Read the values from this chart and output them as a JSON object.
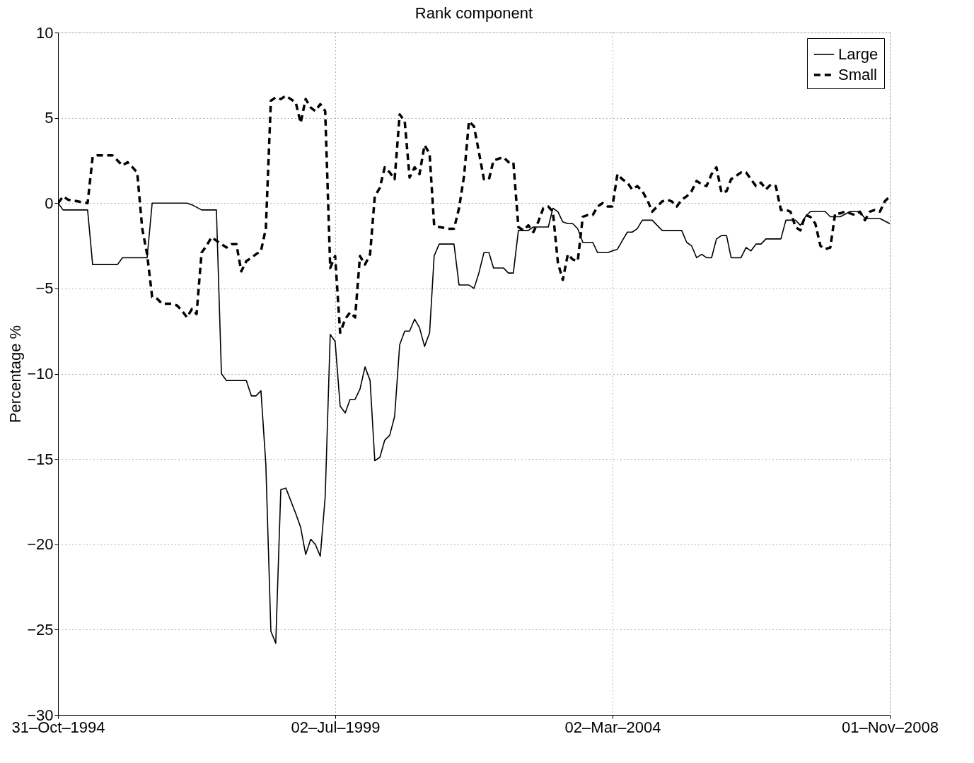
{
  "chart_data": {
    "type": "line",
    "title": "Rank component",
    "ylabel": "Percentage %",
    "xlim": [
      "1994-10-31",
      "2008-11-01"
    ],
    "xticks": [
      {
        "value": "1994-10-31",
        "label": "31–Oct–1994"
      },
      {
        "value": "1999-07-02",
        "label": "02–Jul–1999"
      },
      {
        "value": "2004-03-02",
        "label": "02–Mar–2004"
      },
      {
        "value": "2008-11-01",
        "label": "01–Nov–2008"
      }
    ],
    "ylim": [
      -30,
      10
    ],
    "yticks": [
      -30,
      -25,
      -20,
      -15,
      -10,
      -5,
      0,
      5,
      10
    ],
    "grid": true,
    "legend": "top right",
    "marker": "none",
    "series": [
      {
        "name": "Large",
        "color": "#000000",
        "line_style": "solid",
        "x": [
          "1994-11",
          "1994-12",
          "1995-05",
          "1995-06",
          "1995-11",
          "1995-12",
          "1996-05",
          "1996-06",
          "1997-01",
          "1997-02",
          "1997-04",
          "1997-07",
          "1997-08",
          "1997-09",
          "1998-01",
          "1998-02",
          "1998-03",
          "1998-04",
          "1998-05",
          "1998-06",
          "1998-07",
          "1998-08",
          "1998-09",
          "1998-11",
          "1998-12",
          "1999-01",
          "1999-02",
          "1999-03",
          "1999-04",
          "1999-05",
          "1999-06",
          "1999-07",
          "1999-08",
          "1999-09",
          "1999-10",
          "1999-11",
          "1999-12",
          "2000-01",
          "2000-02",
          "2000-03",
          "2000-04",
          "2000-05",
          "2000-06",
          "2000-07",
          "2000-08",
          "2000-09",
          "2000-10",
          "2000-11",
          "2000-12",
          "2001-01",
          "2001-02",
          "2001-03",
          "2001-04",
          "2001-07",
          "2001-08",
          "2001-10",
          "2001-11",
          "2001-12",
          "2002-01",
          "2002-02",
          "2002-03",
          "2002-05",
          "2002-06",
          "2002-07",
          "2002-08",
          "2002-10",
          "2002-11",
          "2003-02",
          "2003-03",
          "2003-04",
          "2003-05",
          "2003-06",
          "2003-07",
          "2003-08",
          "2003-09",
          "2003-11",
          "2003-12",
          "2004-02",
          "2004-03",
          "2004-04",
          "2004-05",
          "2004-06",
          "2004-07",
          "2004-08",
          "2004-09",
          "2004-11",
          "2004-12",
          "2005-01",
          "2005-05",
          "2005-06",
          "2005-07",
          "2005-08",
          "2005-09",
          "2005-10",
          "2005-11",
          "2005-12",
          "2006-01",
          "2006-02",
          "2006-03",
          "2006-05",
          "2006-06",
          "2006-07",
          "2006-08",
          "2006-09",
          "2006-10",
          "2007-01",
          "2007-02",
          "2007-04",
          "2007-05",
          "2007-06",
          "2007-07",
          "2007-10",
          "2007-11",
          "2008-01",
          "2008-03",
          "2008-05",
          "2008-06",
          "2008-09",
          "2008-11"
        ],
        "values": [
          0,
          -0.4,
          -0.4,
          -3.6,
          -3.6,
          -3.2,
          -3.2,
          0,
          0,
          -0.1,
          -0.4,
          -0.4,
          -10,
          -10.4,
          -10.4,
          -11.3,
          -11.3,
          -11,
          -15.3,
          -25.1,
          -25.8,
          -16.8,
          -16.7,
          -18.2,
          -19,
          -20.6,
          -19.7,
          -20,
          -20.7,
          -17.2,
          -7.7,
          -8.1,
          -11.9,
          -12.3,
          -11.5,
          -11.5,
          -10.9,
          -9.6,
          -10.4,
          -15.1,
          -14.9,
          -13.9,
          -13.6,
          -12.5,
          -8.3,
          -7.5,
          -7.5,
          -6.8,
          -7.3,
          -8.4,
          -7.6,
          -3.1,
          -2.4,
          -2.4,
          -4.8,
          -4.8,
          -5,
          -4.1,
          -2.9,
          -2.9,
          -3.8,
          -3.8,
          -4.1,
          -4.1,
          -1.6,
          -1.6,
          -1.4,
          -1.4,
          -0.3,
          -0.5,
          -1.1,
          -1.2,
          -1.2,
          -1.5,
          -2.3,
          -2.3,
          -2.9,
          -2.9,
          -2.8,
          -2.7,
          -2.2,
          -1.7,
          -1.7,
          -1.5,
          -1.0,
          -1.0,
          -1.3,
          -1.6,
          -1.6,
          -2.3,
          -2.5,
          -3.2,
          -3.0,
          -3.2,
          -3.2,
          -2.1,
          -1.9,
          -1.9,
          -3.2,
          -3.2,
          -2.6,
          -2.8,
          -2.4,
          -2.4,
          -2.1,
          -2.1,
          -1.0,
          -1.0,
          -1.3,
          -0.8,
          -0.5,
          -0.5,
          -0.8,
          -0.8,
          -0.5,
          -0.5,
          -0.9,
          -0.9,
          -1.2
        ]
      },
      {
        "name": "Small",
        "color": "#000000",
        "line_style": "dashed",
        "x": [
          "1994-11",
          "1994-12",
          "1995-01",
          "1995-03",
          "1995-05",
          "1995-06",
          "1995-07",
          "1995-10",
          "1995-11",
          "1995-12",
          "1996-01",
          "1996-02",
          "1996-03",
          "1996-04",
          "1996-05",
          "1996-06",
          "1996-07",
          "1996-08",
          "1996-10",
          "1996-11",
          "1996-12",
          "1997-01",
          "1997-02",
          "1997-03",
          "1997-04",
          "1997-05",
          "1997-06",
          "1997-07",
          "1997-08",
          "1997-09",
          "1997-10",
          "1997-11",
          "1997-12",
          "1998-01",
          "1998-02",
          "1998-03",
          "1998-04",
          "1998-05",
          "1998-06",
          "1998-07",
          "1998-08",
          "1998-09",
          "1998-10",
          "1998-11",
          "1998-12",
          "1999-01",
          "1999-02",
          "1999-03",
          "1999-04",
          "1999-05",
          "1999-06",
          "1999-07",
          "1999-08",
          "1999-09",
          "1999-10",
          "1999-11",
          "1999-12",
          "2000-01",
          "2000-02",
          "2000-03",
          "2000-04",
          "2000-05",
          "2000-06",
          "2000-07",
          "2000-08",
          "2000-09",
          "2000-10",
          "2000-11",
          "2000-12",
          "2001-01",
          "2001-02",
          "2001-03",
          "2001-04",
          "2001-06",
          "2001-07",
          "2001-08",
          "2001-09",
          "2001-10",
          "2001-11",
          "2001-12",
          "2002-01",
          "2002-02",
          "2002-03",
          "2002-04",
          "2002-05",
          "2002-06",
          "2002-07",
          "2002-08",
          "2002-09",
          "2002-10",
          "2002-11",
          "2002-12",
          "2003-01",
          "2003-02",
          "2003-03",
          "2003-04",
          "2003-05",
          "2003-06",
          "2003-07",
          "2003-08",
          "2003-09",
          "2003-10",
          "2003-11",
          "2003-12",
          "2004-01",
          "2004-02",
          "2004-03",
          "2004-04",
          "2004-05",
          "2004-06",
          "2004-07",
          "2004-08",
          "2004-09",
          "2004-10",
          "2004-11",
          "2004-12",
          "2005-01",
          "2005-02",
          "2005-03",
          "2005-04",
          "2005-05",
          "2005-06",
          "2005-07",
          "2005-08",
          "2005-09",
          "2005-10",
          "2005-11",
          "2005-12",
          "2006-01",
          "2006-02",
          "2006-03",
          "2006-04",
          "2006-05",
          "2006-06",
          "2006-07",
          "2006-08",
          "2006-09",
          "2006-10",
          "2006-11",
          "2006-12",
          "2007-01",
          "2007-02",
          "2007-03",
          "2007-04",
          "2007-05",
          "2007-06",
          "2007-07",
          "2007-08",
          "2007-09",
          "2007-10",
          "2007-11",
          "2007-12",
          "2008-01",
          "2008-02",
          "2008-03",
          "2008-04",
          "2008-05",
          "2008-06",
          "2008-07",
          "2008-08",
          "2008-09",
          "2008-10",
          "2008-11"
        ],
        "values": [
          0,
          0.4,
          0.2,
          0.1,
          0,
          2.7,
          2.8,
          2.8,
          2.5,
          2.2,
          2.4,
          2.1,
          1.8,
          -1.5,
          -3,
          -5.5,
          -5.6,
          -5.9,
          -5.9,
          -6,
          -6.3,
          -6.7,
          -6.2,
          -6.5,
          -2.9,
          -2.5,
          -2,
          -2.2,
          -2.4,
          -2.6,
          -2.4,
          -2.4,
          -4,
          -3.4,
          -3.2,
          -3.0,
          -2.8,
          -1.5,
          6,
          6.2,
          6.1,
          6.3,
          6.1,
          5.9,
          4.7,
          6.1,
          5.6,
          5.4,
          5.8,
          5.4,
          -3.8,
          -3.1,
          -7.6,
          -6.8,
          -6.4,
          -6.7,
          -3.1,
          -3.6,
          -3.0,
          0.4,
          0.9,
          2.1,
          1.8,
          1.4,
          5.2,
          4.8,
          1.5,
          2.1,
          1.7,
          3.4,
          2.9,
          -1.3,
          -1.4,
          -1.5,
          -1.5,
          -0.3,
          1.6,
          4.8,
          4.5,
          3.0,
          1.4,
          1.4,
          2.5,
          2.6,
          2.7,
          2.4,
          2.4,
          -1.4,
          -1.6,
          -1.3,
          -1.7,
          -1.1,
          -0.3,
          -0.2,
          -0.5,
          -3.5,
          -4.5,
          -3.0,
          -3.3,
          -3.4,
          -0.8,
          -0.7,
          -0.7,
          -0.2,
          0,
          -0.2,
          -0.2,
          1.7,
          1.4,
          1.2,
          0.8,
          1.0,
          0.7,
          0.2,
          -0.5,
          -0.2,
          0.1,
          0.2,
          0.1,
          -0.2,
          0.2,
          0.4,
          0.7,
          1.3,
          1.1,
          1.0,
          1.7,
          2.1,
          0.6,
          0.7,
          1.4,
          1.6,
          1.8,
          1.8,
          1.4,
          1.0,
          1.2,
          0.8,
          1.1,
          1.0,
          -0.4,
          -0.4,
          -0.5,
          -1.4,
          -1.6,
          -0.7,
          -0.8,
          -1.2,
          -2.5,
          -2.7,
          -2.6,
          -0.6,
          -0.6,
          -0.5,
          -0.6,
          -0.7,
          -0.5,
          -1.0,
          -0.5,
          -0.4,
          -0.5,
          0.1,
          0.4
        ]
      }
    ]
  }
}
